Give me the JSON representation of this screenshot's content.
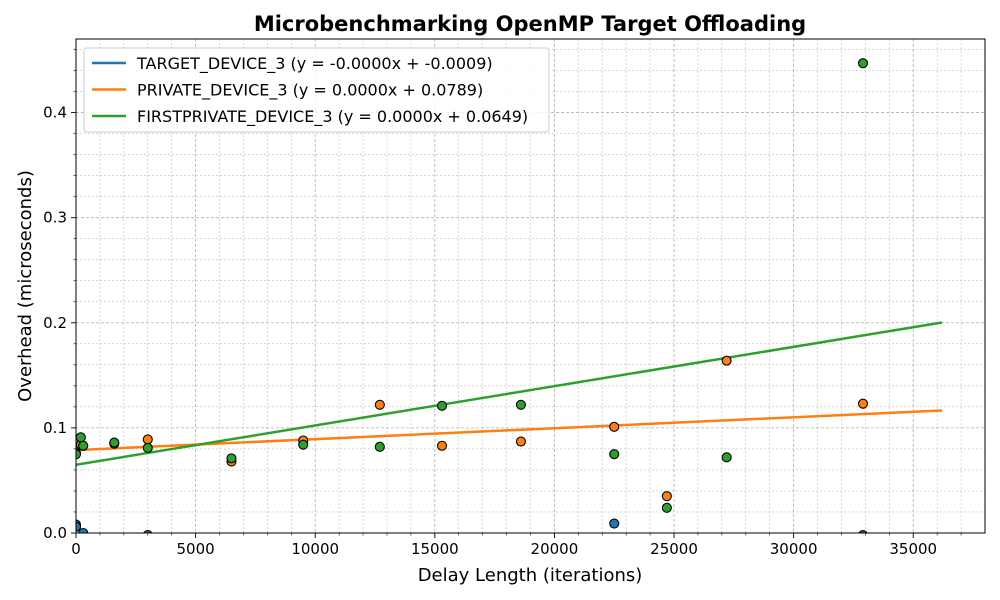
{
  "chart_data": {
    "type": "scatter",
    "title": "Microbenchmarking OpenMP Target Offloading",
    "xlabel": "Delay Length (iterations)",
    "ylabel": "Overhead (microseconds)",
    "xlim": [
      0,
      38000
    ],
    "ylim": [
      0,
      0.47
    ],
    "xticks": [
      0,
      5000,
      10000,
      15000,
      20000,
      25000,
      30000,
      35000
    ],
    "xtick_labels": [
      "0",
      "5000",
      "10000",
      "15000",
      "20000",
      "25000",
      "30000",
      "35000"
    ],
    "yticks": [
      0.0,
      0.1,
      0.2,
      0.3,
      0.4
    ],
    "ytick_labels": [
      "0.0",
      "0.1",
      "0.2",
      "0.3",
      "0.4"
    ],
    "grid": true,
    "legend_position": "top-left",
    "series": [
      {
        "name": "TARGET_DEVICE_3 (y = -0.0000x + -0.0009)",
        "color": "#1f77b4",
        "points": [
          [
            0,
            0.008
          ],
          [
            0,
            0.006
          ],
          [
            300,
            0.0
          ],
          [
            3000,
            -0.002
          ],
          [
            22500,
            0.009
          ],
          [
            32900,
            -0.002
          ]
        ],
        "fit": {
          "slope": -2e-08,
          "intercept": -0.0009,
          "x_range": [
            0,
            36200
          ]
        }
      },
      {
        "name": "PRIVATE_DEVICE_3 (y = 0.0000x + 0.0789)",
        "color": "#ff7f0e",
        "points": [
          [
            0,
            0.076
          ],
          [
            200,
            0.084
          ],
          [
            300,
            0.083
          ],
          [
            1600,
            0.085
          ],
          [
            3000,
            0.089
          ],
          [
            6500,
            0.068
          ],
          [
            9500,
            0.088
          ],
          [
            12700,
            0.122
          ],
          [
            15300,
            0.083
          ],
          [
            18600,
            0.087
          ],
          [
            22500,
            0.101
          ],
          [
            24700,
            0.035
          ],
          [
            27200,
            0.164
          ],
          [
            32900,
            0.123
          ]
        ],
        "fit": {
          "slope": 1.04e-06,
          "intercept": 0.0789,
          "x_range": [
            0,
            36200
          ]
        }
      },
      {
        "name": "FIRSTPRIVATE_DEVICE_3 (y = 0.0000x + 0.0649)",
        "color": "#2ca02c",
        "points": [
          [
            0,
            0.075
          ],
          [
            200,
            0.091
          ],
          [
            300,
            0.083
          ],
          [
            1600,
            0.086
          ],
          [
            3000,
            0.081
          ],
          [
            6500,
            0.071
          ],
          [
            9500,
            0.084
          ],
          [
            12700,
            0.082
          ],
          [
            15300,
            0.121
          ],
          [
            18600,
            0.122
          ],
          [
            22500,
            0.075
          ],
          [
            24700,
            0.024
          ],
          [
            27200,
            0.072
          ],
          [
            32900,
            0.447
          ]
        ],
        "fit": {
          "slope": 3.74e-06,
          "intercept": 0.0649,
          "x_range": [
            0,
            36200
          ]
        }
      }
    ]
  }
}
